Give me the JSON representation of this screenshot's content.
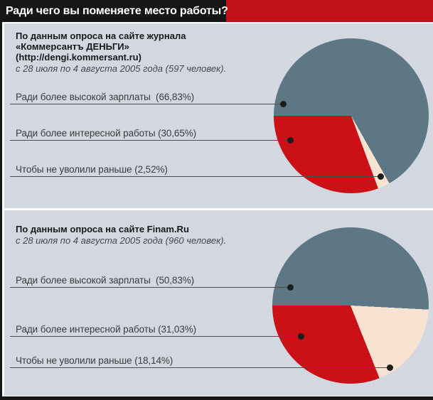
{
  "title_bar": {
    "title": "Ради чего вы поменяете место работы?"
  },
  "colors": {
    "title_bar_bg": "#161616",
    "title_accent_red": "#c01218",
    "panel_bg": "#d2d7e0",
    "salary_slice_gray": "#5d7884",
    "work_slice_red": "#cb1016",
    "fired_slice_cream": "#f8e2d2",
    "leader_line": "#4d4d4d",
    "dot": "#1d1d1d"
  },
  "chart_data": [
    {
      "type": "pie",
      "source_bold_lines": [
        "По данным опроса на сайте журнала",
        "«Коммерсантъ ДЕНЬГИ»",
        "(http://dengi.kommersant.ru)"
      ],
      "period_italic": "с 28 июля по 4 августа 2005 года (597 человек).",
      "categories": [
        "Ради более высокой зарплаты",
        "Ради более интересной работы",
        "Чтобы не уволили раньше"
      ],
      "values": [
        66.83,
        30.65,
        2.52
      ],
      "display_labels": [
        "Ради более высокой зарплаты  (66,83%)",
        "Ради более интересной работы (30,65%)",
        "Чтобы не уволили раньше (2,52%)"
      ],
      "slice_colors": [
        "#5d7884",
        "#cb1016",
        "#f8e2d2"
      ],
      "draw_order_cw_from_left": [
        0,
        2,
        1
      ],
      "start_angle": "left-horizontal",
      "legend_position": "left"
    },
    {
      "type": "pie",
      "source_bold_lines": [
        "По данным опроса на сайте Finam.Ru"
      ],
      "period_italic": "с 28 июля по 4 августа 2005 года (960 человек).",
      "categories": [
        "Ради более высокой зарплаты",
        "Ради более интересной работы",
        "Чтобы не уволили раньше"
      ],
      "values": [
        50.83,
        31.03,
        18.14
      ],
      "display_labels": [
        "Ради более высокой зарплаты  (50,83%)",
        "Ради более интересной работы (31,03%)",
        "Чтобы не уволили раньше (18,14%)"
      ],
      "slice_colors": [
        "#5d7884",
        "#cb1016",
        "#f8e2d2"
      ],
      "draw_order_cw_from_left": [
        0,
        2,
        1
      ],
      "start_angle": "left-horizontal",
      "legend_position": "left"
    }
  ]
}
